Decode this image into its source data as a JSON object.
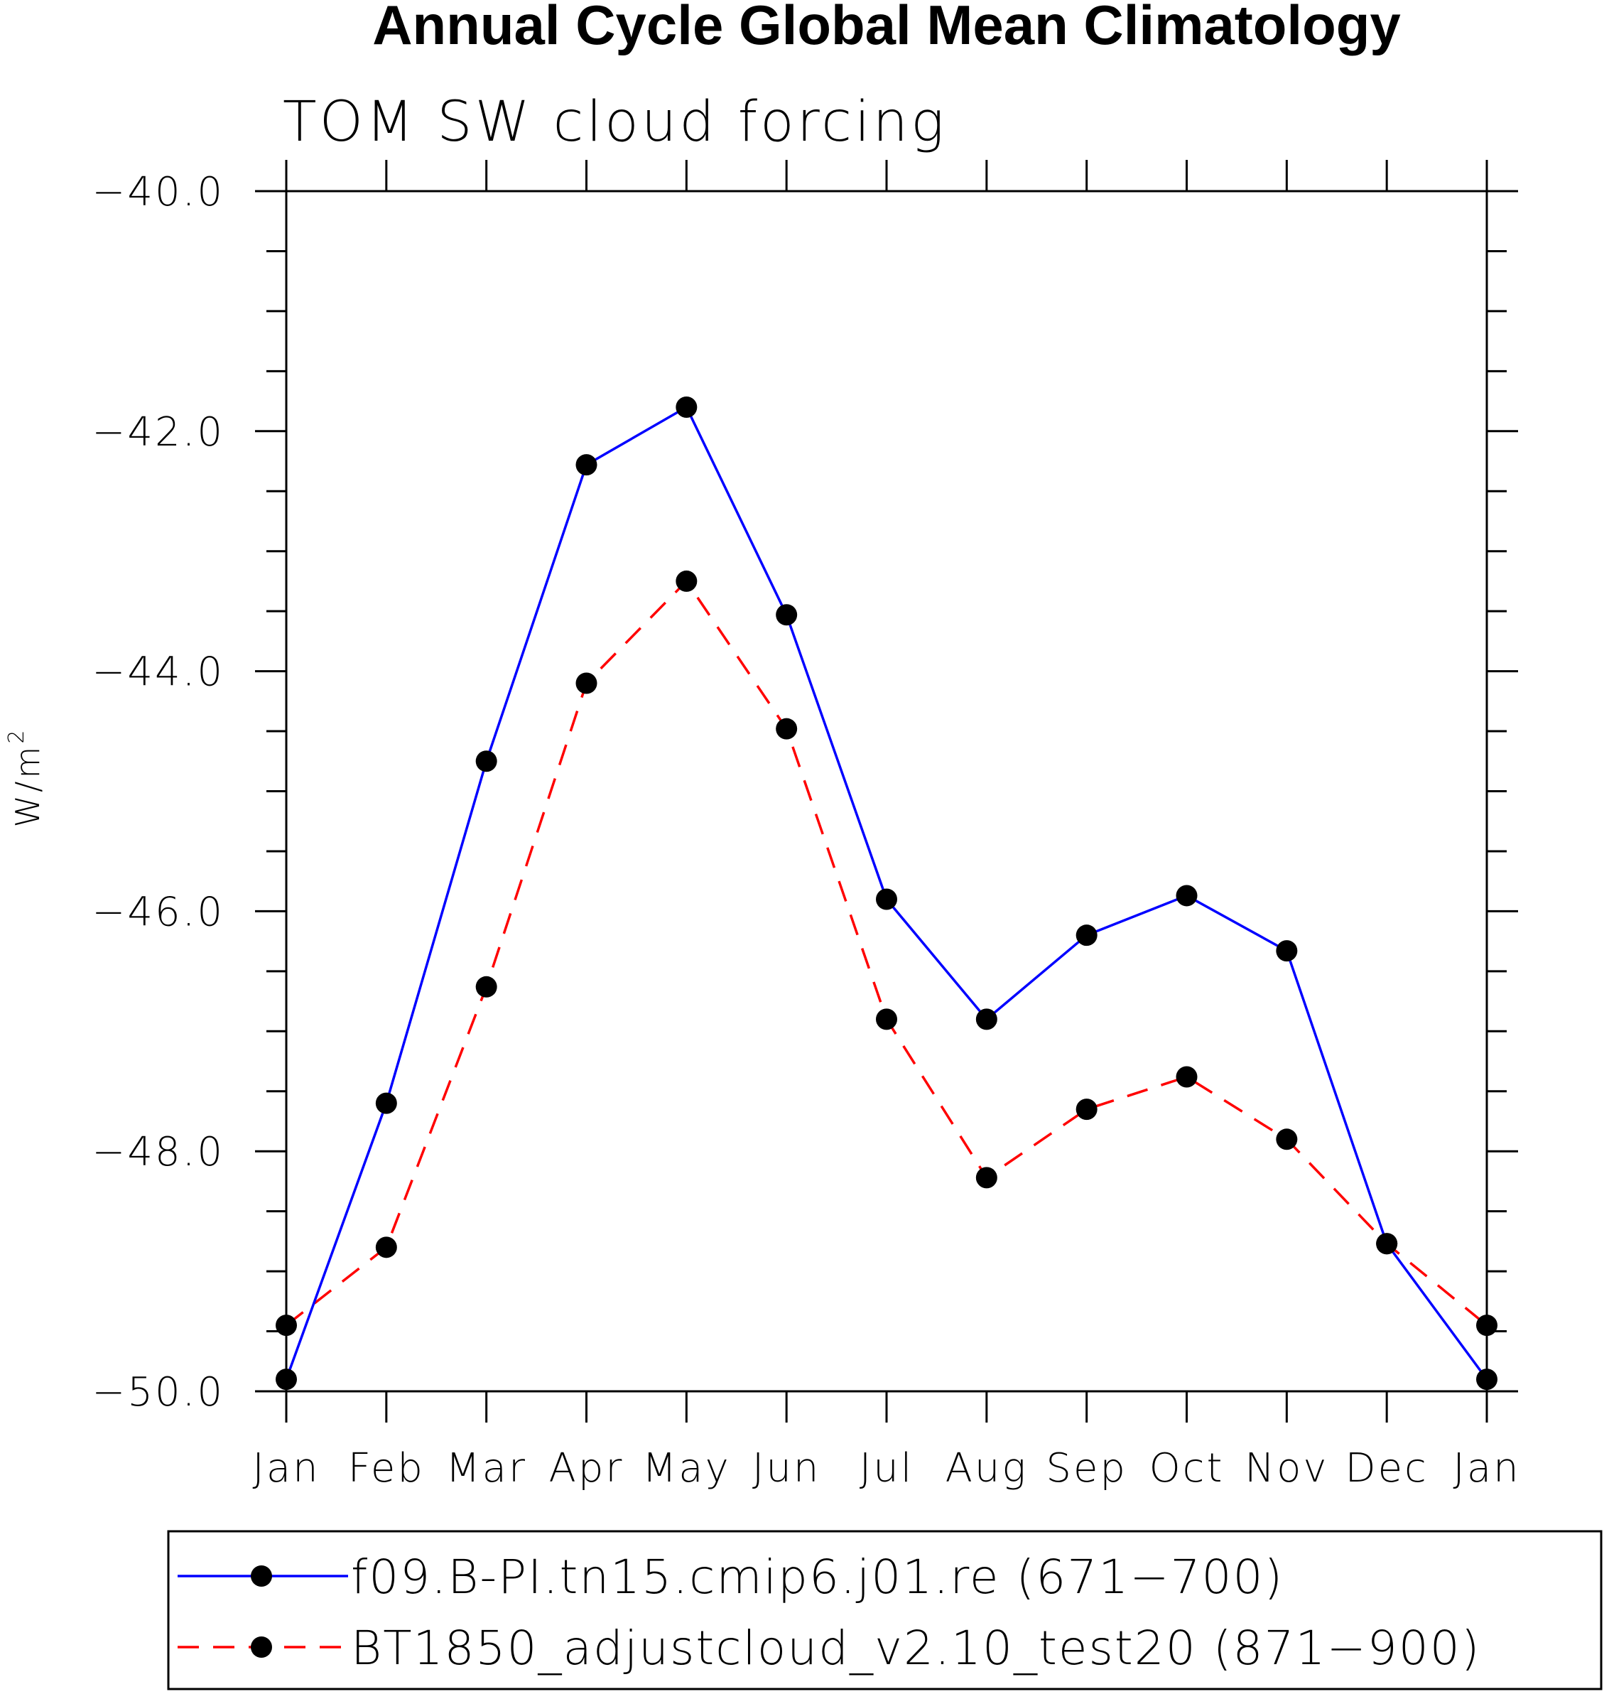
{
  "chart_data": {
    "type": "line",
    "title": "Annual Cycle Global Mean Climatology",
    "subtitle": "TOM SW cloud forcing",
    "ylabel": "W/m",
    "ylabel_superscript": "2",
    "xlabel": "",
    "categories": [
      "Jan",
      "Feb",
      "Mar",
      "Apr",
      "May",
      "Jun",
      "Jul",
      "Aug",
      "Sep",
      "Oct",
      "Nov",
      "Dec",
      "Jan"
    ],
    "ylim": [
      -50.0,
      -40.0
    ],
    "yticks": [
      -40.0,
      -42.0,
      -44.0,
      -46.0,
      -48.0,
      -50.0
    ],
    "ytick_labels": [
      "−40.0",
      "−42.0",
      "−44.0",
      "−46.0",
      "−48.0",
      "−50.0"
    ],
    "yminor_step": 0.5,
    "grid": false,
    "legend_position": "bottom",
    "series": [
      {
        "name": "f09.B-PI.tn15.cmip6.j01.re (671−700)",
        "color": "#0000ff",
        "style": "solid",
        "marker": "circle",
        "values": [
          -49.9,
          -47.6,
          -44.75,
          -42.28,
          -41.8,
          -43.53,
          -45.9,
          -46.9,
          -46.2,
          -45.87,
          -46.33,
          -48.77,
          -49.9
        ]
      },
      {
        "name": "BT1850_adjustcloud_v2.10_test20 (871−900)",
        "color": "#ff0000",
        "style": "dashed",
        "marker": "circle",
        "values": [
          -49.45,
          -48.8,
          -46.63,
          -44.1,
          -43.25,
          -44.48,
          -46.9,
          -48.22,
          -47.65,
          -47.38,
          -47.9,
          -48.77,
          -49.45
        ]
      }
    ]
  }
}
